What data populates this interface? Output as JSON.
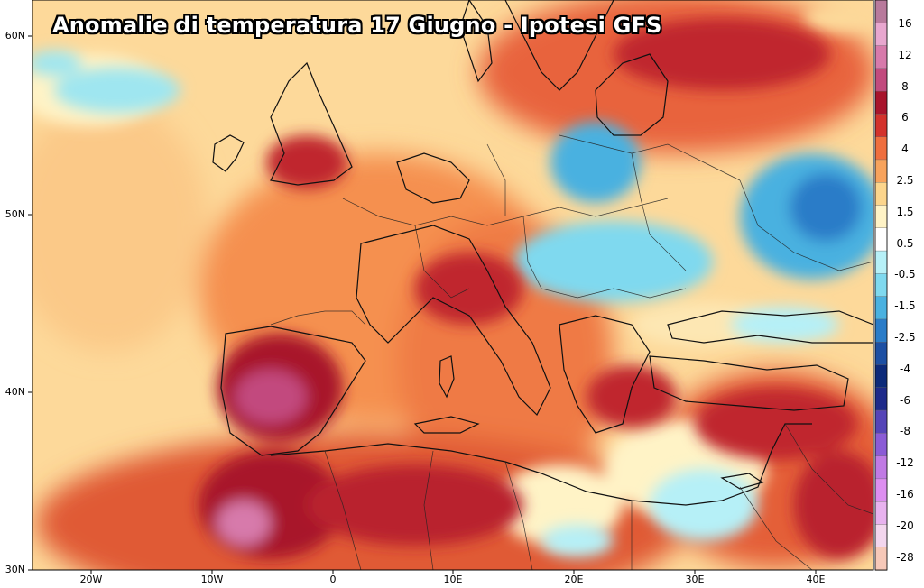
{
  "title": "Anomalie di temperatura 17 Giugno - Ipotesi GFS",
  "lat_labels": [
    "60N",
    "50N",
    "40N",
    "30N"
  ],
  "lon_labels": [
    "20W",
    "10W",
    "0",
    "10E",
    "20E",
    "30E",
    "40E"
  ],
  "colorbar": {
    "labels": [
      "16",
      "12",
      "8",
      "6",
      "4",
      "2.5",
      "1.5",
      "0.5",
      "-0.5",
      "-1.5",
      "-2.5",
      "-4",
      "-6",
      "-8",
      "-12",
      "-16",
      "-20",
      "-28"
    ],
    "colors": [
      "#b87a9c",
      "#e8a7cf",
      "#d77aab",
      "#c24a7e",
      "#a8142c",
      "#d3322c",
      "#ef6e3e",
      "#f8a35c",
      "#fcd58c",
      "#fff3c6",
      "#ffffff",
      "#b6f0f7",
      "#7fd9ef",
      "#4ab1e0",
      "#2a7cc8",
      "#1c4fa3",
      "#0c2a7a",
      "#1e2a8a",
      "#5544b8",
      "#8b5bd6",
      "#c07ae4",
      "#dd8ef0",
      "#e8b2ef",
      "#f3d6ee",
      "#f6c8b8"
    ]
  }
}
